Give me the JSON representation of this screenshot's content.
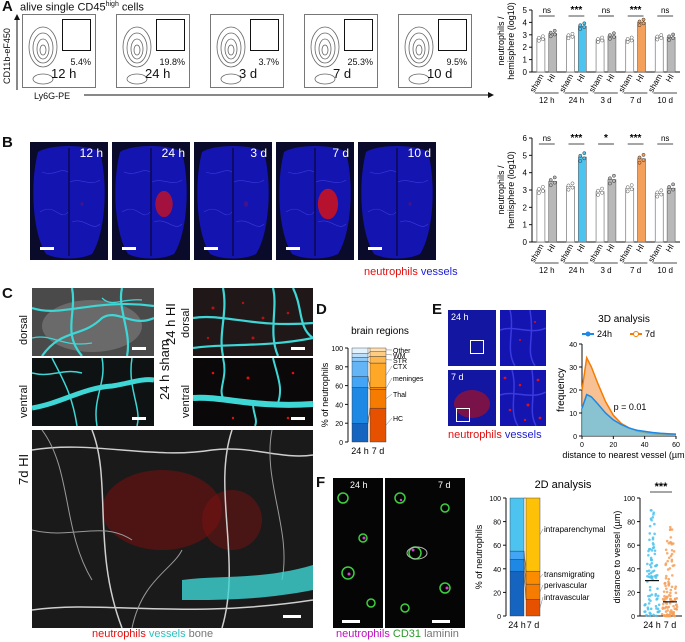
{
  "panelA": {
    "letter": "A",
    "gate_label": "alive single CD45",
    "gate_label_sup": "high",
    "gate_label_tail": " cells",
    "y_axis": "CD11b-eF450",
    "x_axis": "Ly6G-PE",
    "plots": [
      {
        "time": "12 h",
        "pct": "5.4%"
      },
      {
        "time": "24 h",
        "pct": "19.8%"
      },
      {
        "time": "3 d",
        "pct": "3.7%"
      },
      {
        "time": "7 d",
        "pct": "25.3%"
      },
      {
        "time": "10 d",
        "pct": "9.5%"
      }
    ]
  },
  "panelB": {
    "letter": "B",
    "images": [
      {
        "time": "12 h"
      },
      {
        "time": "24 h"
      },
      {
        "time": "3 d"
      },
      {
        "time": "7 d"
      },
      {
        "time": "10 d"
      }
    ],
    "legend_neutrophils": "neutrophils",
    "legend_vessels": "vessels"
  },
  "panelC": {
    "letter": "C",
    "dorsal": "dorsal",
    "ventral": "ventral",
    "sham_label": "24 h sham",
    "hi_label": "24 h HI",
    "hi7_label": "7d HI",
    "legend_neutrophils": "neutrophils",
    "legend_vessels": "vessels",
    "legend_bone": "bone"
  },
  "panelD": {
    "letter": "D",
    "title": "brain regions",
    "ylabel": "% of neutrophils",
    "regions": [
      "Other",
      "WM",
      "STR",
      "CTX",
      "meninges",
      "Thal",
      "HC"
    ],
    "x": [
      "24 h",
      "7 d"
    ]
  },
  "panelE": {
    "letter": "E",
    "t24": "24 h",
    "t7": "7 d",
    "legend_neutrophils": "neutrophils",
    "legend_vessels": "vessels",
    "title": "3D analysis",
    "series24": "24h",
    "series7": "7d",
    "ylabel": "frequency",
    "xlabel": "distance to nearest vessel (µm)",
    "pvalue": "p = 0.01"
  },
  "panelF": {
    "letter": "F",
    "t24": "24 h",
    "t7": "7 d",
    "legend_neutrophils": "neutrophils",
    "legend_cd31": "CD31",
    "legend_laminin": "laminin",
    "title": "2D analysis",
    "ylabel_stack": "% of neutrophils",
    "categories": [
      "intraparenchymal",
      "transmigrating",
      "perivascular",
      "intravascular"
    ],
    "x": [
      "24 h",
      "7 d"
    ],
    "ylabel_dot": "distance to vessel (µm)",
    "sig": "***"
  },
  "colors": {
    "h24": "#4dc3f0",
    "d7": "#f5a05a",
    "gray": "#b8b8b8",
    "cyan": "#3fd6d6",
    "blue_bg": "#1010a0",
    "red": "#e01010"
  },
  "chart_data": [
    {
      "type": "bar",
      "id": "A-flow-counts",
      "ylabel": "neutrophils / hemisphere (log10)",
      "ylim": [
        0,
        5
      ],
      "yticks": [
        0,
        1,
        2,
        3,
        4,
        5
      ],
      "groups": [
        "12 h",
        "24 h",
        "3 d",
        "7 d",
        "10 d"
      ],
      "bars": [
        "sham",
        "HI"
      ],
      "sham": [
        2.7,
        2.9,
        2.6,
        2.6,
        2.8
      ],
      "HI": [
        3.1,
        3.7,
        2.9,
        4.0,
        2.8
      ],
      "sig": [
        "ns",
        "***",
        "ns",
        "***",
        "ns"
      ]
    },
    {
      "type": "bar",
      "id": "B-lsfm-counts",
      "ylabel": "neutrophils / hemisphere (log10)",
      "ylim": [
        0,
        6
      ],
      "yticks": [
        0,
        1,
        2,
        3,
        4,
        5,
        6
      ],
      "groups": [
        "12 h",
        "24 h",
        "3 d",
        "7 d",
        "10 d"
      ],
      "bars": [
        "sham",
        "HI"
      ],
      "sham": [
        3.0,
        3.2,
        2.9,
        3.1,
        2.8
      ],
      "HI": [
        3.5,
        4.9,
        3.6,
        4.8,
        3.1
      ],
      "sig": [
        "ns",
        "***",
        "*",
        "***",
        "ns"
      ]
    },
    {
      "type": "bar",
      "id": "D-regions",
      "ylim": [
        0,
        100
      ],
      "yticks": [
        0,
        20,
        40,
        60,
        80,
        100
      ],
      "x": [
        "24 h",
        "7 d"
      ],
      "stacked_series": [
        {
          "name": "HC",
          "values": [
            20,
            36
          ]
        },
        {
          "name": "Thal",
          "values": [
            38,
            20
          ]
        },
        {
          "name": "meninges",
          "values": [
            12,
            2
          ]
        },
        {
          "name": "CTX",
          "values": [
            16,
            26
          ]
        },
        {
          "name": "STR",
          "values": [
            4,
            7
          ]
        },
        {
          "name": "WM",
          "values": [
            4,
            5
          ]
        },
        {
          "name": "Other",
          "values": [
            6,
            4
          ]
        }
      ]
    },
    {
      "type": "area",
      "id": "E-3d",
      "xlim": [
        0,
        60
      ],
      "ylim": [
        0,
        40
      ],
      "xticks": [
        0,
        20,
        40,
        60
      ],
      "yticks": [
        0,
        10,
        20,
        30,
        40
      ],
      "x": [
        0,
        3,
        6,
        10,
        15,
        20,
        25,
        30,
        35,
        40,
        45,
        50,
        55,
        60
      ],
      "series": [
        {
          "name": "24h",
          "values": [
            12,
            18,
            17,
            14,
            10,
            7,
            5,
            3.5,
            2.5,
            2,
            1.5,
            1.2,
            1,
            0.8
          ]
        },
        {
          "name": "7d",
          "values": [
            20,
            34,
            30,
            23,
            15,
            9,
            5.5,
            3.5,
            2.2,
            1.5,
            1,
            0.7,
            0.5,
            0.4
          ]
        }
      ]
    },
    {
      "type": "bar",
      "id": "F-2d-stack",
      "ylim": [
        0,
        100
      ],
      "yticks": [
        0,
        20,
        40,
        60,
        80,
        100
      ],
      "x": [
        "24 h",
        "7 d"
      ],
      "stacked_series": [
        {
          "name": "intravascular",
          "values": [
            38,
            14
          ]
        },
        {
          "name": "perivascular",
          "values": [
            10,
            13
          ]
        },
        {
          "name": "transmigrating",
          "values": [
            7,
            11
          ]
        },
        {
          "name": "intraparenchymal",
          "values": [
            45,
            62
          ]
        }
      ]
    },
    {
      "type": "scatter",
      "id": "F-distance",
      "ylim": [
        0,
        100
      ],
      "yticks": [
        0,
        20,
        40,
        60,
        80,
        100
      ],
      "x": [
        "24 h",
        "7 d"
      ],
      "medians": [
        30,
        12
      ]
    }
  ]
}
